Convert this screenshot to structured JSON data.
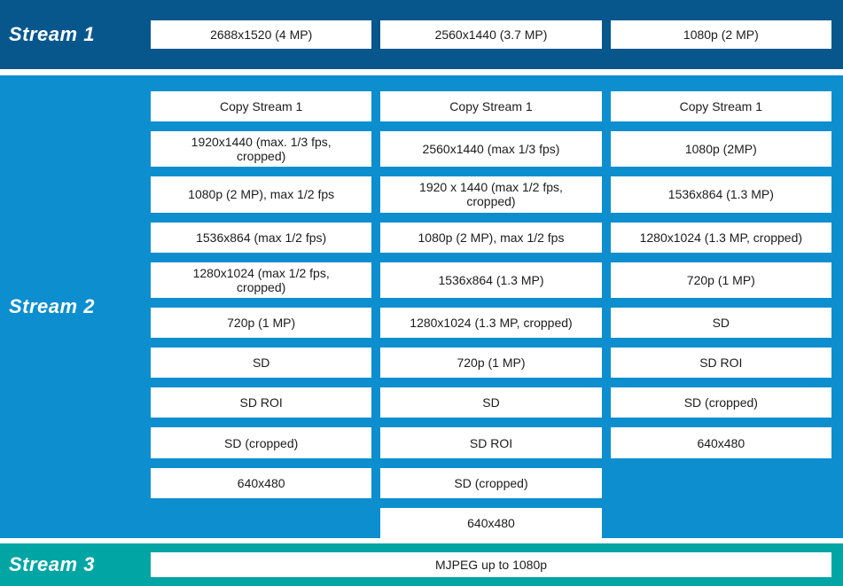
{
  "colors": {
    "stream1_bg": "#07578D",
    "stream2_bg": "#0D8ECF",
    "stream3_bg": "#00A5A4",
    "box_bg": "#FFFFFF",
    "box_text": "#1C1C1C",
    "label_text": "#FFFFFF"
  },
  "stream1": {
    "label": "Stream 1",
    "options": [
      "2688x1520 (4 MP)",
      "2560x1440 (3.7 MP)",
      "1080p (2 MP)"
    ]
  },
  "stream2": {
    "label": "Stream 2",
    "rows": [
      [
        "Copy Stream 1",
        "Copy Stream 1",
        "Copy Stream 1"
      ],
      [
        "1920x1440 (max. 1/3 fps,\ncropped)",
        "2560x1440 (max 1/3 fps)",
        "1080p (2MP)"
      ],
      [
        "1080p (2 MP), max 1/2 fps",
        "1920 x 1440 (max 1/2 fps,\ncropped)",
        "1536x864 (1.3 MP)"
      ],
      [
        "1536x864 (max 1/2 fps)",
        "1080p (2 MP), max 1/2 fps",
        "1280x1024 (1.3 MP, cropped)"
      ],
      [
        "1280x1024 (max 1/2 fps,\ncropped)",
        "1536x864 (1.3 MP)",
        "720p (1 MP)"
      ],
      [
        "720p (1 MP)",
        "1280x1024 (1.3 MP, cropped)",
        "SD"
      ],
      [
        "SD",
        "720p (1 MP)",
        "SD ROI"
      ],
      [
        "SD ROI",
        "SD",
        "SD (cropped)"
      ],
      [
        "SD (cropped)",
        "SD ROI",
        "640x480"
      ],
      [
        "640x480",
        "SD (cropped)",
        null
      ],
      [
        null,
        "640x480",
        null
      ]
    ]
  },
  "stream3": {
    "label": "Stream 3",
    "options": [
      "MJPEG up to 1080p"
    ]
  }
}
